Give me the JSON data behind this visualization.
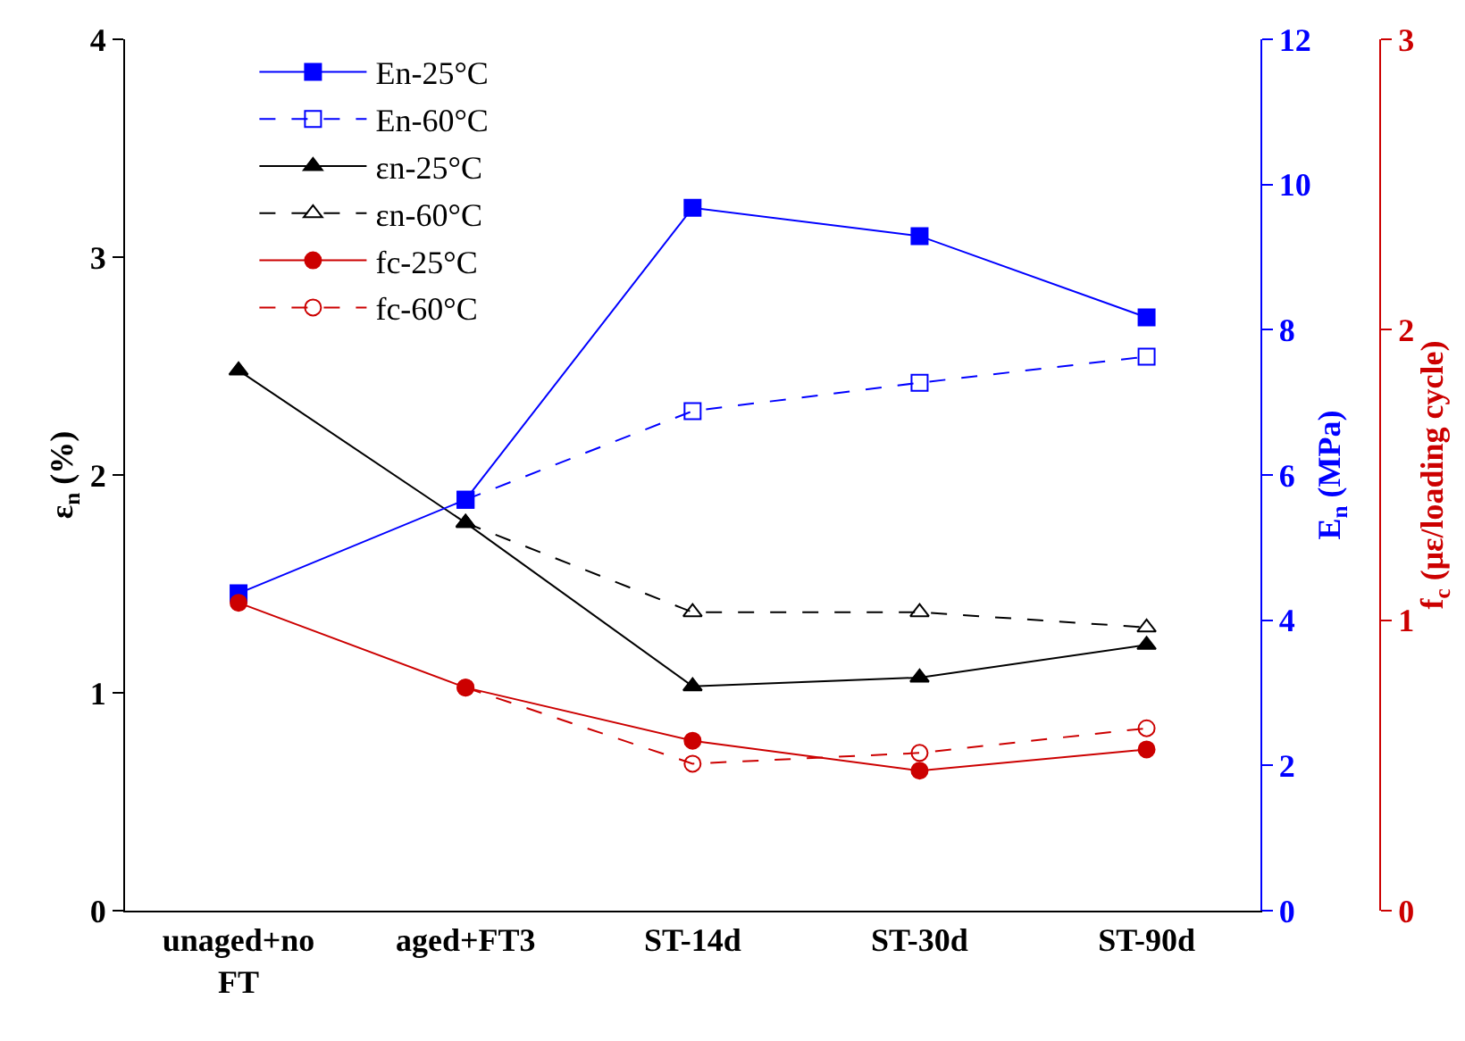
{
  "chart_data": {
    "type": "line",
    "categories": [
      "unaged+no FT",
      "aged+FT3",
      "ST-14d",
      "ST-30d",
      "ST-90d"
    ],
    "ylabel": "ε$_{n}$ (%)",
    "y2label": "E$_{n}$ (MPa)",
    "y3label": "f$_{c}$ (με/loading cycle)",
    "ylim": [
      0,
      4
    ],
    "yticks": [
      0,
      1,
      2,
      3,
      4
    ],
    "y2lim": [
      0,
      12
    ],
    "y2ticks": [
      0,
      2,
      4,
      6,
      8,
      10,
      12
    ],
    "y3lim": [
      0,
      3
    ],
    "y3ticks": [
      0,
      1,
      2,
      3
    ],
    "legend": "top left",
    "series": [
      {
        "name": "En-25°C",
        "color": "#0000ff",
        "axis": "y2",
        "marker": "square",
        "line_style": "solid",
        "values": [
          4.37,
          5.66,
          9.68,
          9.29,
          8.17
        ]
      },
      {
        "name": "En-60°C",
        "color": "#0000ff",
        "axis": "y2",
        "marker": "square",
        "line_style": "dashed",
        "values": [
          null,
          5.66,
          6.88,
          7.27,
          7.63
        ]
      },
      {
        "name": "εn-25°C",
        "color": "#000000",
        "axis": "y",
        "marker": "triangle",
        "line_style": "solid",
        "values": [
          2.48,
          1.78,
          1.03,
          1.07,
          1.22
        ]
      },
      {
        "name": "εn-60°C",
        "color": "#000000",
        "axis": "y",
        "marker": "triangle",
        "line_style": "dashed",
        "values": [
          null,
          1.78,
          1.37,
          1.37,
          1.3
        ]
      },
      {
        "name": "fc-25°C",
        "color": "#cc0000",
        "axis": "y3",
        "marker": "circle",
        "line_style": "solid",
        "values": [
          1.06,
          0.768,
          0.585,
          0.482,
          0.555
        ]
      },
      {
        "name": "fc-60°C",
        "color": "#cc0000",
        "axis": "y3",
        "marker": "circle",
        "line_style": "dashed",
        "values": [
          null,
          0.768,
          0.506,
          0.543,
          0.628
        ]
      }
    ]
  }
}
